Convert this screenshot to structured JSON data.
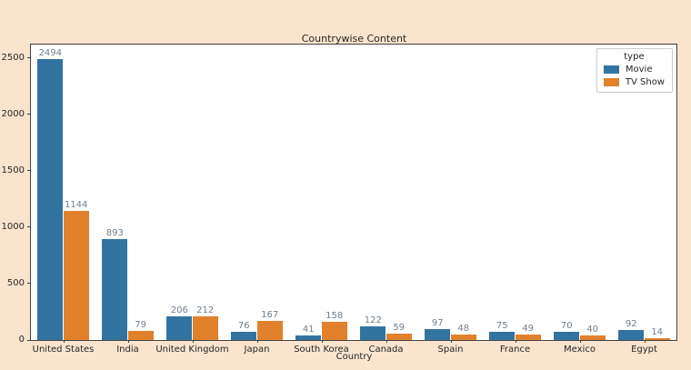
{
  "chart_data": {
    "type": "bar",
    "title": "Countrywise Content",
    "xlabel": "Country",
    "ylabel": "",
    "categories": [
      "United States",
      "India",
      "United Kingdom",
      "Japan",
      "South Korea",
      "Canada",
      "Spain",
      "France",
      "Mexico",
      "Egypt"
    ],
    "series": [
      {
        "name": "Movie",
        "color": "#3274a1",
        "values": [
          2494,
          893,
          206,
          76,
          41,
          122,
          97,
          75,
          70,
          92
        ]
      },
      {
        "name": "TV Show",
        "color": "#e1812c",
        "values": [
          1144,
          79,
          212,
          167,
          158,
          59,
          48,
          49,
          40,
          14
        ]
      }
    ],
    "yticks": [
      0,
      500,
      1000,
      1500,
      2000,
      2500
    ],
    "ylim": [
      0,
      2620
    ],
    "grid": false,
    "bar_value_labels": true,
    "legend": {
      "title": "type",
      "position": "upper-right"
    }
  },
  "colors": {
    "figure_background": "#fbe4cd",
    "plot_background": "#ffffff",
    "movie_bar": "#3274a1",
    "tv_show_bar": "#e1812c",
    "value_label_text": "#6d7e8e",
    "axis_text": "#262626",
    "spine": "#404040",
    "legend_border": "#cccccc"
  }
}
